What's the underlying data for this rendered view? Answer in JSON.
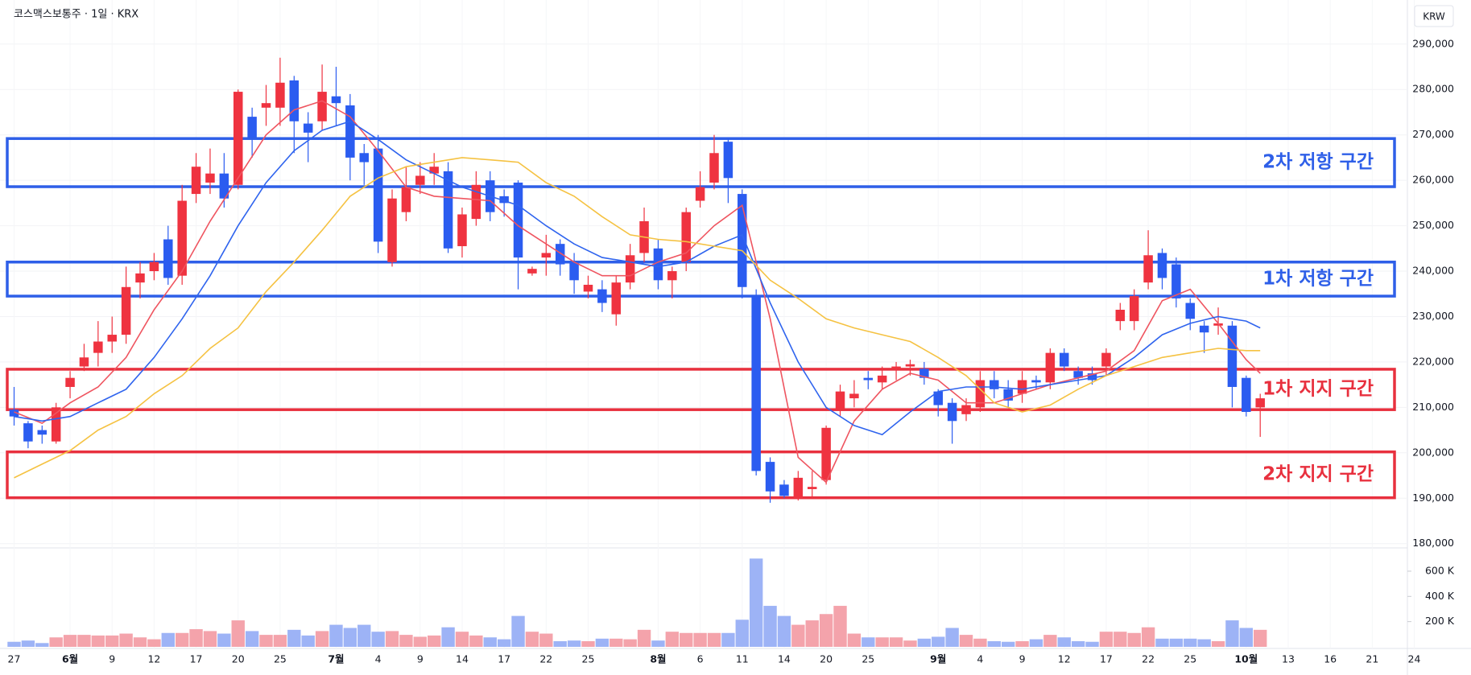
{
  "chart_data": {
    "type": "candlestick",
    "title": "코스맥스보통주 · 1일 · KRX",
    "currency": "KRW",
    "categories": [
      "27",
      null,
      null,
      null,
      "6월",
      null,
      null,
      "9",
      null,
      null,
      "12",
      null,
      null,
      "17",
      null,
      null,
      "20",
      null,
      null,
      "25",
      null,
      null,
      null,
      "7월",
      null,
      null,
      "4",
      null,
      null,
      "9",
      null,
      null,
      "14",
      null,
      null,
      "17",
      null,
      null,
      "22",
      null,
      null,
      "25",
      null,
      null,
      null,
      null,
      "8월",
      null,
      null,
      "6",
      null,
      null,
      "11",
      null,
      null,
      "14",
      null,
      null,
      "20",
      null,
      null,
      "25",
      null,
      null,
      null,
      null,
      "9월",
      null,
      null,
      "4",
      null,
      null,
      "9",
      null,
      null,
      "12",
      null,
      null,
      "17",
      null,
      null,
      "22",
      null,
      null,
      "25",
      null,
      null,
      null,
      "10월",
      null,
      null,
      "13",
      null,
      null,
      "16",
      null,
      null,
      "21",
      null,
      null,
      "24"
    ],
    "open": [
      209500,
      206500,
      205000,
      202500,
      214500,
      219000,
      222000,
      224500,
      226000,
      237500,
      240000,
      247000,
      239000,
      257000,
      259500,
      261500,
      259000,
      274000,
      276000,
      276000,
      282000,
      272500,
      273000,
      278500,
      276500,
      266000,
      267000,
      242000,
      253000,
      259000,
      261500,
      262000,
      245500,
      251500,
      260000,
      256500,
      259500,
      239500,
      243000,
      246000,
      242000,
      235500,
      236000,
      230500,
      237500,
      244000,
      245000,
      238000,
      242000,
      255500,
      259500,
      268500,
      257000,
      234500,
      198000,
      193000,
      190000,
      192000,
      194000,
      209500,
      212000,
      216500,
      215500,
      218500,
      219000,
      218500,
      213500,
      211000,
      208500,
      210000,
      216000,
      214000,
      213000,
      216000,
      215500,
      222000,
      218000,
      217500,
      219000,
      229000,
      229000,
      237500,
      244000,
      241500,
      233000,
      228000,
      228000,
      228000,
      216500,
      210000,
      null,
      null,
      null,
      null,
      null,
      null,
      null,
      null,
      null,
      null,
      null
    ],
    "high": [
      214500,
      207000,
      206000,
      211000,
      218000,
      224000,
      229000,
      230000,
      241000,
      242000,
      244000,
      250000,
      259000,
      266000,
      267000,
      266000,
      280000,
      276000,
      281000,
      287000,
      283000,
      275000,
      285500,
      285000,
      279000,
      268000,
      270000,
      258000,
      263000,
      264000,
      266000,
      264000,
      254000,
      262000,
      262000,
      258000,
      260000,
      241000,
      248000,
      247000,
      244000,
      239000,
      238000,
      239000,
      246000,
      254000,
      247000,
      241000,
      254000,
      262000,
      270000,
      269500,
      258000,
      236000,
      199000,
      194000,
      196000,
      196000,
      206000,
      215000,
      216000,
      218000,
      219000,
      220000,
      220500,
      220000,
      214000,
      212000,
      212000,
      218000,
      218000,
      216000,
      218000,
      217000,
      223000,
      223000,
      219000,
      219000,
      223000,
      233000,
      236000,
      249000,
      245000,
      243000,
      234000,
      229000,
      232000,
      229000,
      217000,
      213000,
      null,
      null,
      null,
      null,
      null,
      null,
      null,
      null,
      null,
      null,
      null
    ],
    "low": [
      206000,
      201000,
      202000,
      202000,
      212000,
      218000,
      219000,
      222000,
      224000,
      234000,
      238000,
      237000,
      237000,
      255000,
      257000,
      254000,
      258000,
      265000,
      272000,
      272000,
      266000,
      264000,
      271000,
      272000,
      260000,
      259000,
      244000,
      241000,
      251000,
      257000,
      259000,
      244000,
      243000,
      250000,
      251000,
      252000,
      236000,
      239000,
      239000,
      239000,
      235000,
      234000,
      231000,
      228000,
      236000,
      242000,
      236000,
      234000,
      240000,
      254000,
      258000,
      255000,
      234000,
      195000,
      189000,
      190000,
      189500,
      190000,
      193000,
      208000,
      210000,
      214000,
      214000,
      216000,
      217000,
      215000,
      208000,
      202000,
      207000,
      209000,
      212000,
      210000,
      211000,
      214000,
      214000,
      218000,
      215000,
      215000,
      217000,
      227000,
      227000,
      236000,
      236000,
      232000,
      227000,
      222000,
      226000,
      210000,
      208000,
      203500,
      null,
      null,
      null,
      null,
      null,
      null,
      null,
      null,
      null,
      null,
      null
    ],
    "close": [
      208000,
      202500,
      204000,
      210000,
      216500,
      221000,
      224500,
      226000,
      236500,
      239500,
      242000,
      238500,
      255500,
      263000,
      261500,
      256000,
      279500,
      269500,
      277000,
      281500,
      273000,
      270500,
      279500,
      277000,
      265000,
      264000,
      246500,
      256000,
      258500,
      261000,
      263000,
      245000,
      252500,
      259000,
      253000,
      255000,
      243000,
      240500,
      244000,
      241500,
      238000,
      237000,
      233000,
      237500,
      243500,
      251000,
      238000,
      240000,
      253000,
      258500,
      266000,
      260500,
      236500,
      196000,
      191500,
      190500,
      194500,
      192500,
      205500,
      213500,
      213000,
      216000,
      217000,
      219000,
      219500,
      216500,
      210500,
      207000,
      210500,
      216000,
      214000,
      211500,
      216000,
      215500,
      222000,
      219000,
      216500,
      216000,
      222000,
      231500,
      234500,
      243500,
      238500,
      234000,
      229500,
      226500,
      228500,
      214500,
      209000,
      212000,
      null,
      null,
      null,
      null,
      null,
      null,
      null,
      null,
      null,
      null,
      null
    ],
    "up_color": "#ef3340",
    "down_color": "#2b5cf0",
    "ylim": [
      180000,
      290000
    ],
    "yticks": [
      {
        "value": 180000,
        "label": "180,000"
      },
      {
        "value": 190000,
        "label": "190,000"
      },
      {
        "value": 200000,
        "label": "200,000"
      },
      {
        "value": 210000,
        "label": "210,000"
      },
      {
        "value": 220000,
        "label": "220,000"
      },
      {
        "value": 230000,
        "label": "230,000"
      },
      {
        "value": 240000,
        "label": "240,000"
      },
      {
        "value": 250000,
        "label": "250,000"
      },
      {
        "value": 260000,
        "label": "260,000"
      },
      {
        "value": 270000,
        "label": "270,000"
      },
      {
        "value": 280000,
        "label": "280,000"
      },
      {
        "value": 290000,
        "label": "290,000"
      }
    ],
    "moving_averages": [
      {
        "color": "#ef5560",
        "x": [
          0,
          2,
          4,
          6,
          8,
          10,
          12,
          14,
          16,
          18,
          20,
          22,
          24,
          26,
          28,
          30,
          32,
          34,
          36,
          38,
          40,
          42,
          44,
          46,
          48,
          50,
          52,
          54,
          56,
          58,
          60,
          62,
          64,
          66,
          68,
          70,
          72,
          74,
          76,
          78,
          80,
          82,
          84,
          86,
          88,
          89
        ],
        "values": [
          209000,
          206500,
          211000,
          214500,
          221000,
          231500,
          240000,
          251000,
          260500,
          270000,
          275500,
          277500,
          274000,
          266500,
          258500,
          256500,
          256000,
          255500,
          250000,
          246000,
          242000,
          239000,
          239000,
          242000,
          244000,
          250000,
          254500,
          229500,
          199000,
          193500,
          207000,
          214000,
          217500,
          216000,
          211000,
          211000,
          213000,
          215000,
          216500,
          218000,
          222500,
          233500,
          236000,
          228500,
          220500,
          217500
        ]
      },
      {
        "color": "#2f64ee",
        "x": [
          0,
          2,
          4,
          6,
          8,
          10,
          12,
          14,
          16,
          18,
          20,
          22,
          24,
          26,
          28,
          30,
          32,
          34,
          36,
          38,
          40,
          42,
          44,
          46,
          48,
          50,
          52,
          54,
          56,
          58,
          60,
          62,
          64,
          66,
          68,
          70,
          72,
          74,
          76,
          78,
          80,
          82,
          84,
          86,
          88,
          89
        ],
        "values": [
          208000,
          207000,
          208000,
          211000,
          214000,
          221000,
          229500,
          239000,
          250000,
          259500,
          266500,
          271000,
          273000,
          269000,
          264500,
          261500,
          258500,
          256500,
          254500,
          250000,
          246000,
          243000,
          242000,
          241000,
          242000,
          245500,
          248000,
          233000,
          220000,
          210000,
          206000,
          204000,
          209000,
          213500,
          214500,
          214500,
          214000,
          215000,
          216000,
          217000,
          221000,
          226000,
          228500,
          230000,
          229000,
          227500
        ]
      },
      {
        "color": "#f5c242",
        "x": [
          0,
          2,
          4,
          6,
          8,
          10,
          12,
          14,
          16,
          18,
          20,
          22,
          24,
          26,
          28,
          30,
          32,
          34,
          36,
          38,
          40,
          42,
          44,
          46,
          48,
          50,
          52,
          54,
          56,
          58,
          60,
          62,
          64,
          66,
          68,
          70,
          72,
          74,
          76,
          78,
          80,
          82,
          84,
          86,
          88,
          89
        ],
        "values": [
          194500,
          197500,
          200500,
          205000,
          208000,
          213000,
          217000,
          223000,
          227500,
          235500,
          242000,
          249000,
          256500,
          260500,
          263000,
          264000,
          265000,
          264500,
          264000,
          259500,
          256500,
          252000,
          248000,
          247000,
          246500,
          245500,
          244500,
          238000,
          234000,
          229500,
          227500,
          226000,
          224500,
          221000,
          217000,
          211000,
          209000,
          210500,
          214000,
          217000,
          219000,
          221000,
          222000,
          223000,
          222500,
          222500
        ]
      }
    ],
    "zones": [
      {
        "label": "2차 저항 구간",
        "color": "#2e5fe8",
        "range": [
          258600,
          269200
        ]
      },
      {
        "label": "1차 저항 구간",
        "color": "#2e5fe8",
        "range": [
          234500,
          242000
        ]
      },
      {
        "label": "1차 지지 구간",
        "color": "#e8303e",
        "range": [
          209500,
          218400
        ]
      },
      {
        "label": "2차 지지 구간",
        "color": "#e8303e",
        "range": [
          190100,
          200200
        ]
      }
    ],
    "volume": {
      "values": [
        40000,
        50000,
        30000,
        75000,
        95000,
        95000,
        90000,
        90000,
        105000,
        75000,
        60000,
        110000,
        110000,
        140000,
        125000,
        105000,
        210000,
        125000,
        95000,
        95000,
        135000,
        90000,
        125000,
        175000,
        150000,
        175000,
        120000,
        125000,
        95000,
        80000,
        90000,
        155000,
        120000,
        90000,
        75000,
        60000,
        245000,
        120000,
        105000,
        45000,
        50000,
        45000,
        65000,
        65000,
        60000,
        135000,
        50000,
        120000,
        110000,
        110000,
        110000,
        110000,
        215000,
        700000,
        325000,
        245000,
        175000,
        210000,
        260000,
        325000,
        105000,
        75000,
        75000,
        75000,
        50000,
        65000,
        80000,
        150000,
        95000,
        65000,
        45000,
        40000,
        45000,
        60000,
        95000,
        75000,
        45000,
        40000,
        120000,
        120000,
        110000,
        155000,
        65000,
        65000,
        65000,
        60000,
        45000,
        210000,
        150000,
        135000,
        null,
        null,
        null,
        null,
        null,
        null,
        null,
        null,
        null,
        null,
        null
      ],
      "up_color": "#f4a3ab",
      "down_color": "#9db3f6",
      "ylim": [
        0,
        740000
      ],
      "yticks": [
        {
          "value": 200000,
          "label": "200 K"
        },
        {
          "value": 400000,
          "label": "400 K"
        },
        {
          "value": 600000,
          "label": "600 K"
        }
      ]
    }
  }
}
